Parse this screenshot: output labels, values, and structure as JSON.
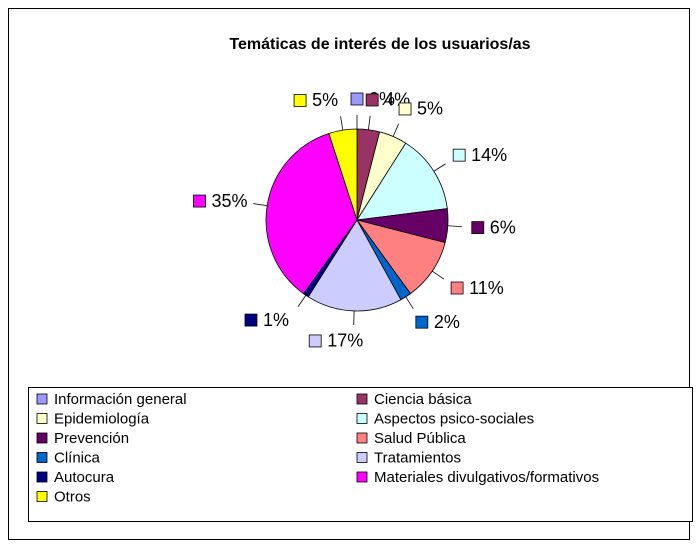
{
  "chart_data": {
    "type": "pie",
    "title": "Temáticas de interés de los usuarios/as",
    "categories": [
      "Información general",
      "Ciencia básica",
      "Epidemiología",
      "Aspectos psico-sociales",
      "Prevención",
      "Salud Pública",
      "Clínica",
      "Tratamientos",
      "Autocura",
      "Materiales divulgativos/formativos",
      "Otros"
    ],
    "values": [
      0,
      4,
      5,
      14,
      6,
      11,
      2,
      17,
      1,
      35,
      5
    ],
    "value_labels": [
      "0%",
      "4%",
      "5%",
      "14%",
      "6%",
      "11%",
      "2%",
      "17%",
      "1%",
      "35%",
      "5%"
    ],
    "colors": [
      "#9999FF",
      "#993366",
      "#FFFFCC",
      "#CCFFFF",
      "#660066",
      "#FF8080",
      "#0066CC",
      "#CCCCFF",
      "#000080",
      "#FF00FF",
      "#FFFF00"
    ],
    "legend": "bottom"
  }
}
